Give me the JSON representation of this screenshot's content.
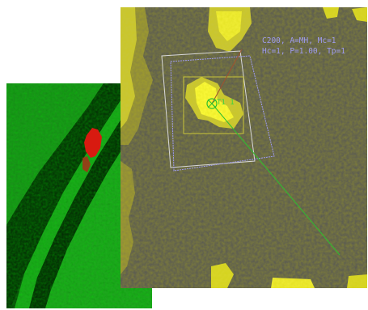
{
  "radar": {
    "label_line1": "C200, A=MH, Mc=1",
    "label_line2": "Hc=1, P=1.00, Tp=1",
    "marker_label": "T1 1",
    "colors": {
      "background": "#565656",
      "echo": "#d9d62b",
      "echo_bright": "#ffff3c",
      "overlay": "#9f9cf0",
      "track": "#2fbf2f",
      "vector": "#a05030"
    }
  },
  "green_view": {
    "colors": {
      "background": "#0a3a0a",
      "band": "#1fa51f",
      "band_bright": "#37d037",
      "hotspot": "#e01010"
    }
  }
}
